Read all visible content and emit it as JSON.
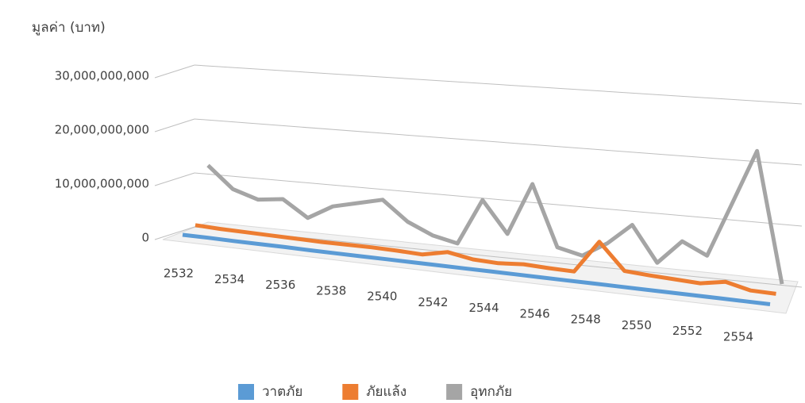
{
  "chart_data": {
    "type": "line3d",
    "y_axis_label": "มูลค่า (บาท)",
    "categories": [
      "2532",
      null,
      "2534",
      null,
      "2536",
      null,
      "2538",
      null,
      "2540",
      null,
      "2542",
      null,
      "2544",
      null,
      "2546",
      null,
      "2548",
      null,
      "2550",
      null,
      "2552",
      null,
      "2554",
      null
    ],
    "series": [
      {
        "name": "วาตภัย",
        "color": "#5b9bd5",
        "values": [
          300000000,
          300000000,
          250000000,
          250000000,
          250000000,
          200000000,
          200000000,
          200000000,
          200000000,
          200000000,
          200000000,
          200000000,
          200000000,
          200000000,
          200000000,
          200000000,
          200000000,
          200000000,
          200000000,
          200000000,
          200000000,
          200000000,
          200000000,
          200000000
        ]
      },
      {
        "name": "ภัยแล้ง",
        "color": "#ed7d31",
        "values": [
          1500000000,
          1300000000,
          1200000000,
          1100000000,
          1000000000,
          900000000,
          900000000,
          900000000,
          800000000,
          600000000,
          1500000000,
          700000000,
          500000000,
          800000000,
          600000000,
          500000000,
          6000000000,
          1500000000,
          1200000000,
          1000000000,
          800000000,
          1500000000,
          500000000,
          400000000
        ]
      },
      {
        "name": "อุทกภัย",
        "color": "#a5a5a5",
        "values": [
          12000000000,
          8000000000,
          6500000000,
          7000000000,
          4000000000,
          6500000000,
          7500000000,
          8500000000,
          5000000000,
          3000000000,
          2000000000,
          10000000000,
          4500000000,
          13500000000,
          3000000000,
          2000000000,
          4500000000,
          8000000000,
          2000000000,
          6000000000,
          4000000000,
          13000000000,
          22000000000,
          500000000
        ]
      }
    ],
    "ylim": [
      0,
      30000000000
    ],
    "yticks": [
      0,
      {
        "value": 10000000000,
        "label": "10,000,000,000"
      },
      {
        "value": 20000000000,
        "label": "20,000,000,000"
      },
      {
        "value": 30000000000,
        "label": "30,000,000,000"
      }
    ],
    "grid": true,
    "legend": "bottom"
  }
}
